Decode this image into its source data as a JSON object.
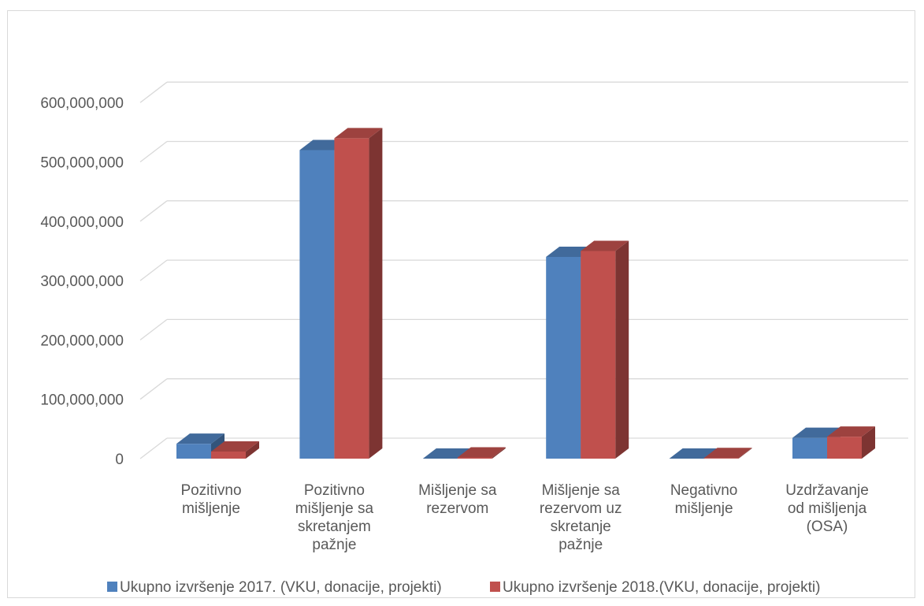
{
  "chart_data": {
    "type": "bar",
    "style": "3d-clustered-column",
    "categories": [
      [
        "Pozitivno",
        "mišljenje"
      ],
      [
        "Pozitivno",
        "mišljenje sa",
        "skretanjem",
        "pažnje"
      ],
      [
        "Mišljenje sa",
        "rezervom"
      ],
      [
        "Mišljenje sa",
        "rezervom uz",
        "skretanje",
        "pažnje"
      ],
      [
        "Negativno",
        "mišljenje"
      ],
      [
        "Uzdržavanje",
        "od mišljenja",
        "(OSA)"
      ]
    ],
    "series": [
      {
        "name": "Ukupno izvršenje 2017. (VKU, donacije, projekti)",
        "color": "#4f81bd",
        "values": [
          25000000,
          520000000,
          0,
          340000000,
          0,
          35000000
        ]
      },
      {
        "name": "Ukupno izvršenje 2018.(VKU, donacije, projekti)",
        "color": "#c0504d",
        "values": [
          12000000,
          540000000,
          2000000,
          350000000,
          1000000,
          37000000
        ]
      }
    ],
    "yticks": [
      "0",
      "100,000,000",
      "200,000,000",
      "300,000,000",
      "400,000,000",
      "500,000,000",
      "600,000,000"
    ],
    "ylim": [
      0,
      600000000
    ],
    "grid": true,
    "legend_position": "bottom",
    "title": "",
    "xlabel": "",
    "ylabel": ""
  }
}
